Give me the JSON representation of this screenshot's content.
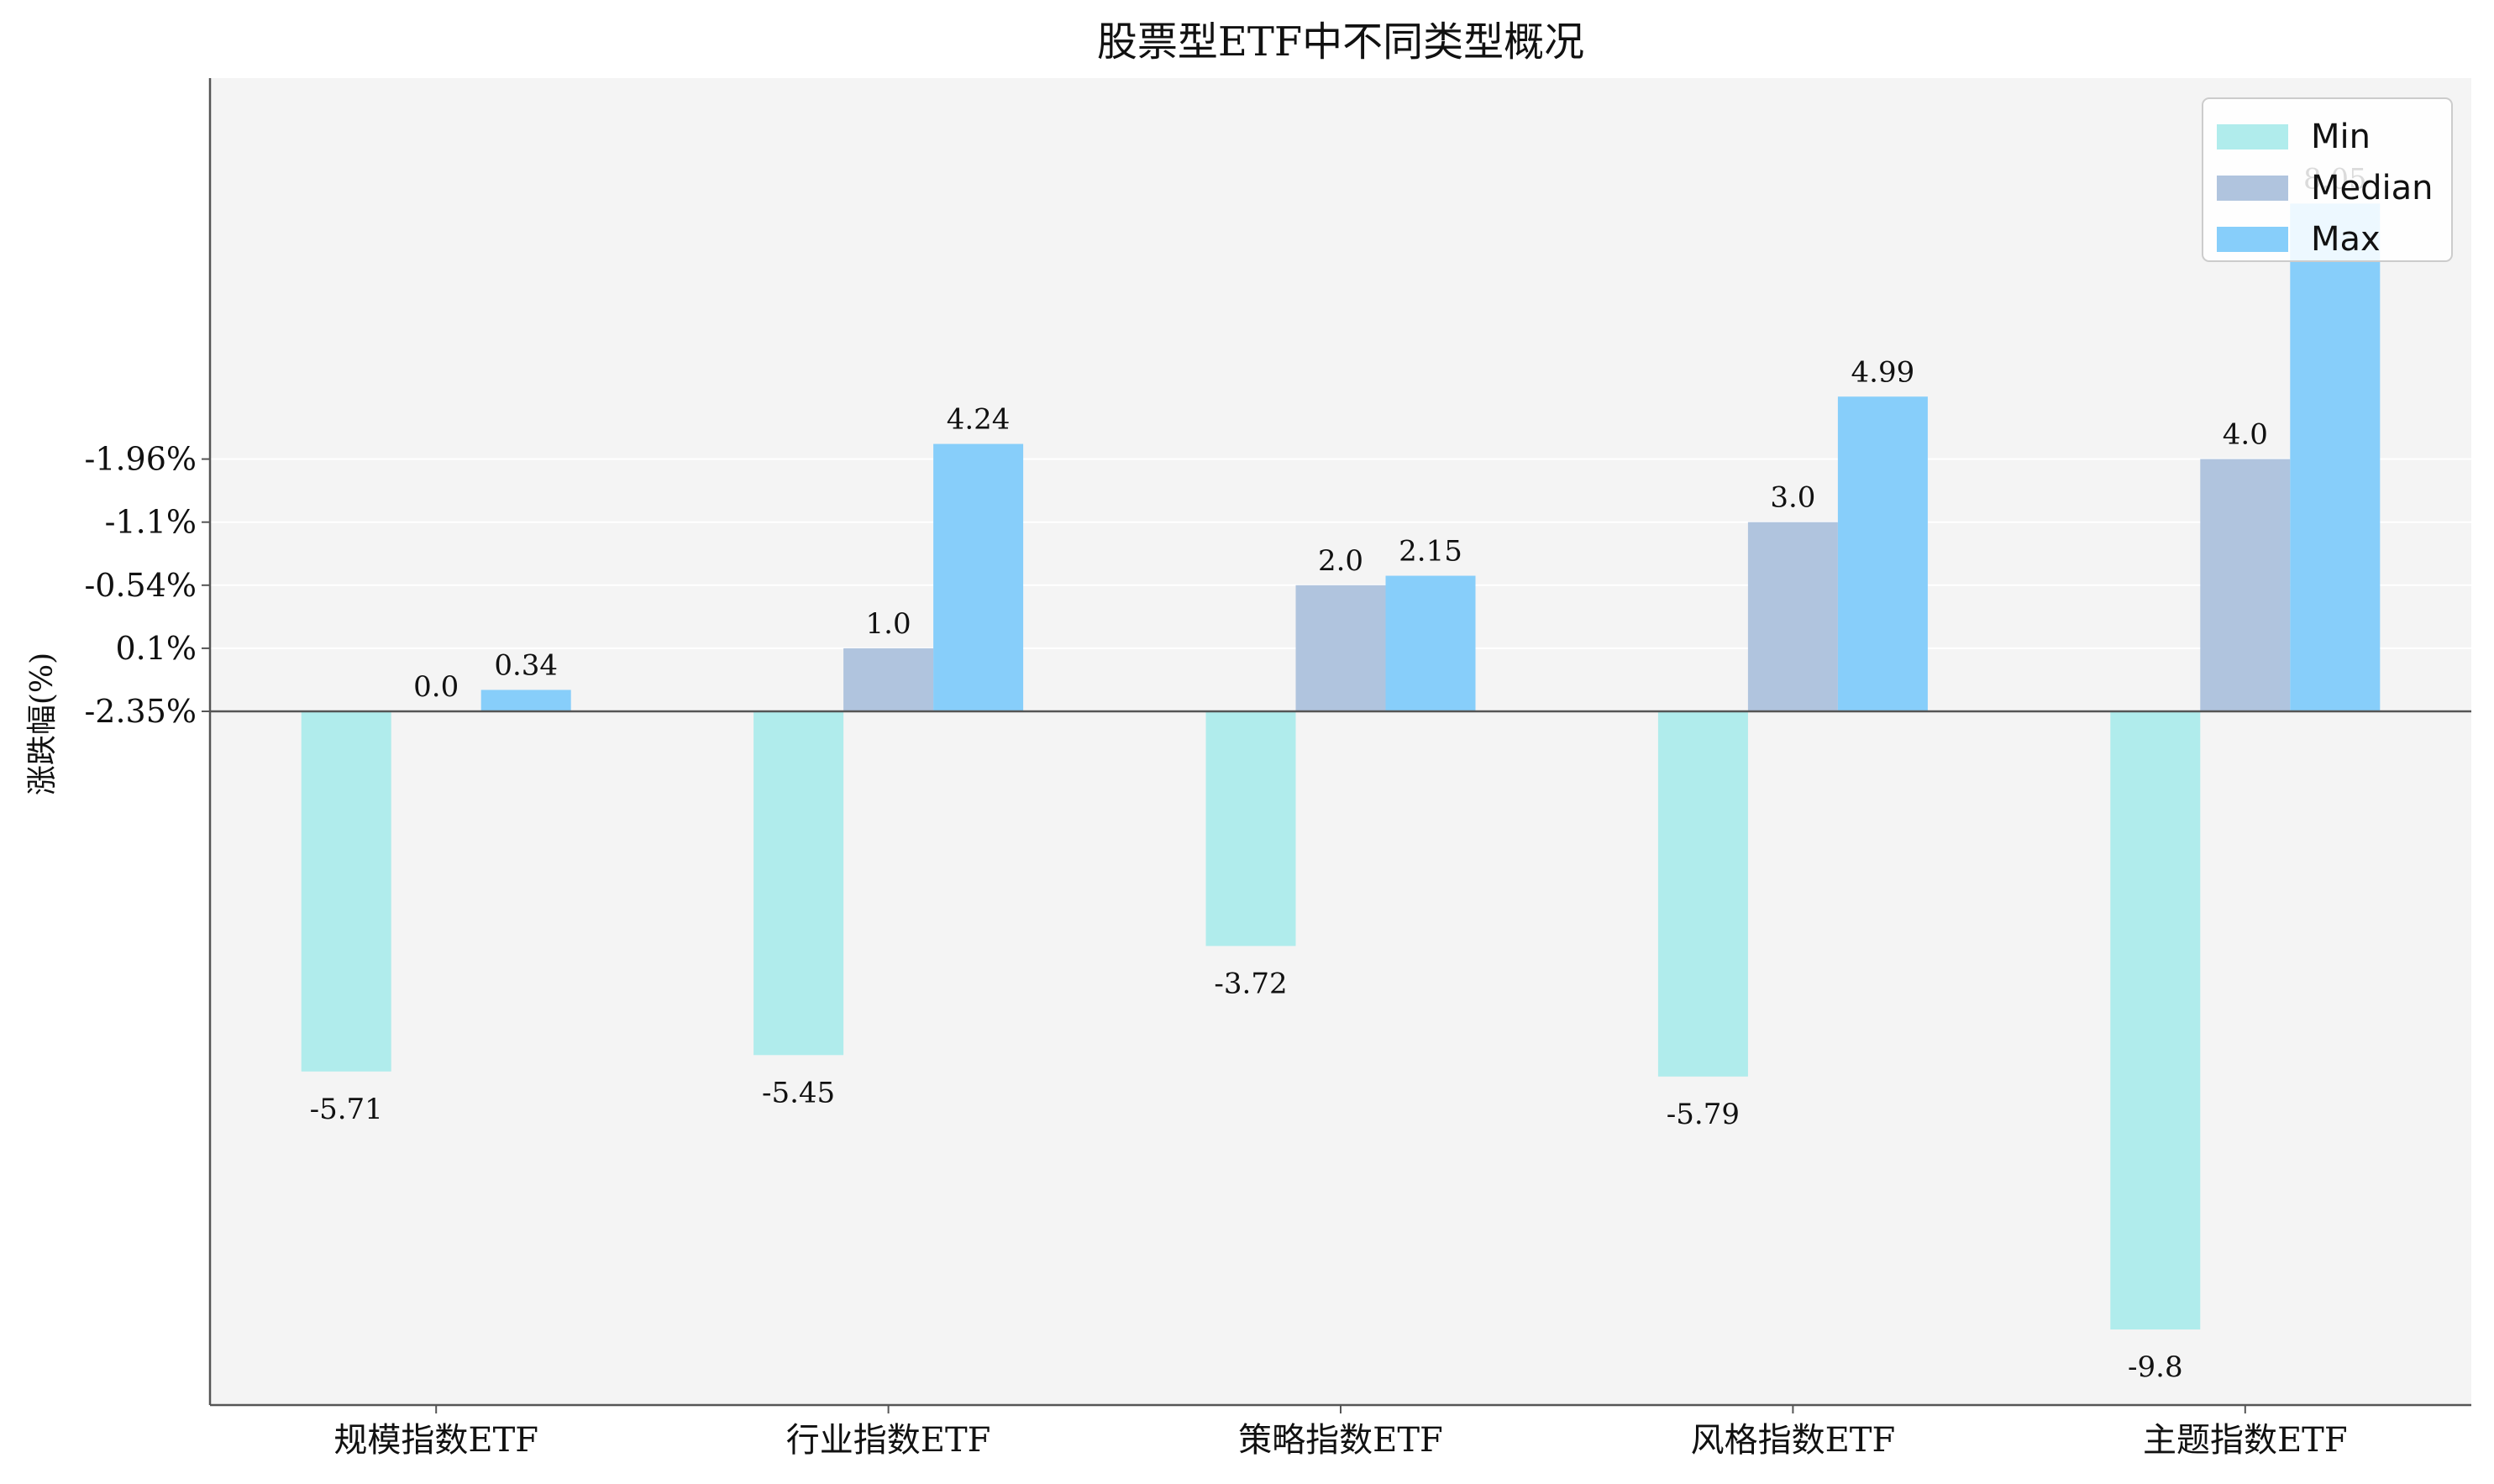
{
  "chart_data": {
    "type": "bar",
    "title": "股票型ETF中不同类型概况",
    "ylabel": "涨跌幅(%)",
    "categories": [
      "规模指数ETF",
      "行业指数ETF",
      "策略指数ETF",
      "风格指数ETF",
      "主题指数ETF"
    ],
    "series": [
      {
        "name": "Min",
        "color": "#b0ecec",
        "values": [
          -5.71,
          -5.45,
          -3.72,
          -5.79,
          -9.8
        ],
        "labels": [
          "-5.71",
          "-5.45",
          "-3.72",
          "-5.79",
          "-9.8"
        ]
      },
      {
        "name": "Median",
        "color": "#b0c4de",
        "values": [
          0.0,
          1.0,
          2.0,
          3.0,
          4.0
        ],
        "labels": [
          "0.0",
          "1.0",
          "2.0",
          "3.0",
          "4.0"
        ]
      },
      {
        "name": "Max",
        "color": "#87cefa",
        "values": [
          0.34,
          4.24,
          2.15,
          4.99,
          8.05
        ],
        "labels": [
          "0.34",
          "4.24",
          "2.15",
          "4.99",
          "8.05"
        ]
      }
    ],
    "yticks": [
      {
        "value": 0,
        "label": "-2.35%"
      },
      {
        "value": 1,
        "label": "0.1%"
      },
      {
        "value": 2,
        "label": "-0.54%"
      },
      {
        "value": 3,
        "label": "-1.1%"
      },
      {
        "value": 4,
        "label": "-1.96%"
      }
    ],
    "ylim": [
      -11,
      10
    ],
    "legend_position": "top-right",
    "background": "#f4f4f4",
    "grid": "horizontal"
  }
}
